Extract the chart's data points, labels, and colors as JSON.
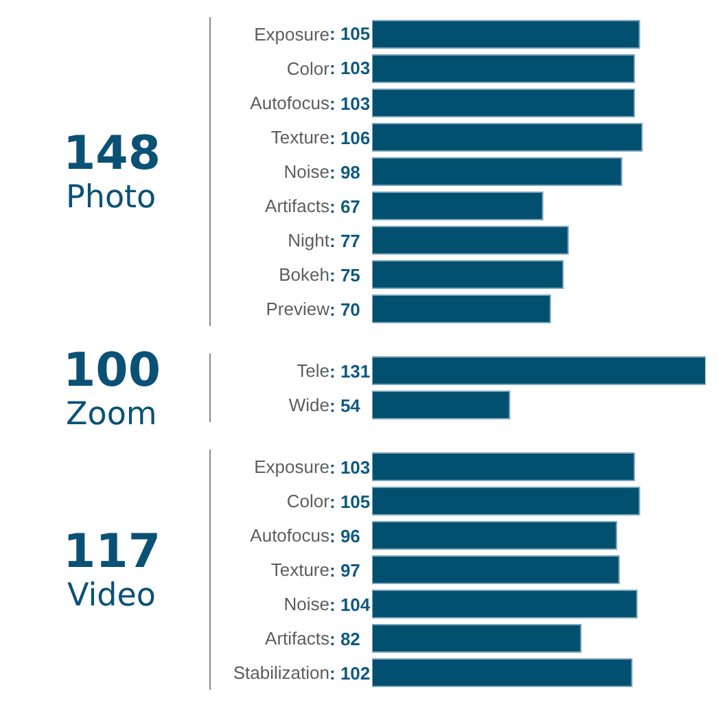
{
  "chart_data": [
    {
      "type": "bar",
      "orientation": "horizontal",
      "title": "Photo",
      "annotations": [
        "148"
      ],
      "categories": [
        "Exposure",
        "Color",
        "Autofocus",
        "Texture",
        "Noise",
        "Artifacts",
        "Night",
        "Bokeh",
        "Preview"
      ],
      "values": [
        105,
        103,
        103,
        106,
        98,
        67,
        77,
        75,
        70
      ],
      "value_labels": [
        ": 105",
        ": 103",
        ": 103",
        ": 106",
        ": 98",
        ": 67",
        ": 77",
        ": 75",
        ": 70"
      ],
      "color": "#02506f",
      "tick_labels": "y"
    },
    {
      "type": "bar",
      "orientation": "horizontal",
      "title": "Zoom",
      "annotations": [
        "100"
      ],
      "categories": [
        "Tele",
        "Wide"
      ],
      "values": [
        131,
        54
      ],
      "value_labels": [
        ": 131",
        ": 54"
      ],
      "color": "#02506f",
      "tick_labels": "y"
    },
    {
      "type": "bar",
      "orientation": "horizontal",
      "title": "Video",
      "annotations": [
        "117"
      ],
      "categories": [
        "Exposure",
        "Color",
        "Autofocus",
        "Texture",
        "Noise",
        "Artifacts",
        "Stabilization"
      ],
      "values": [
        103,
        105,
        96,
        97,
        104,
        82,
        102
      ],
      "value_labels": [
        ": 103",
        ": 105",
        ": 96",
        ": 97",
        ": 104",
        ": 82",
        ": 102"
      ],
      "color": "#02506f",
      "tick_labels": "y"
    }
  ]
}
